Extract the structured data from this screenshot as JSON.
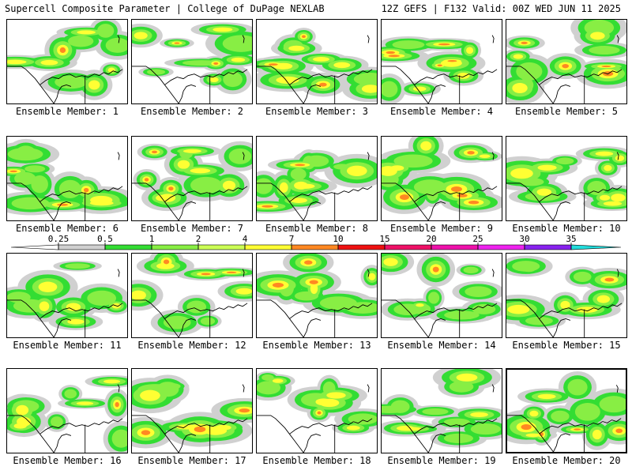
{
  "header": {
    "title_left": "Supercell Composite Parameter | College of DuPage NEXLAB",
    "title_right": "12Z GEFS | F132 Valid: 00Z WED JUN 11 2025"
  },
  "legend": {
    "ticks": [
      "0.25",
      "0.5",
      "1",
      "2",
      "4",
      "7",
      "10",
      "15",
      "20",
      "25",
      "30",
      "35"
    ],
    "colors": [
      "#d0d0d0",
      "#33dd33",
      "#88ee44",
      "#ccff55",
      "#ffff33",
      "#ff8822",
      "#ee1111",
      "#ee1166",
      "#ee11aa",
      "#ee22ee",
      "#8822ee",
      "#aa66dd",
      "#22dddd"
    ]
  },
  "panel_caption_prefix": "Ensemble Member: ",
  "panels": [
    {
      "member": "1"
    },
    {
      "member": "2"
    },
    {
      "member": "3"
    },
    {
      "member": "4"
    },
    {
      "member": "5"
    },
    {
      "member": "6"
    },
    {
      "member": "7"
    },
    {
      "member": "8"
    },
    {
      "member": "9"
    },
    {
      "member": "10"
    },
    {
      "member": "11"
    },
    {
      "member": "12"
    },
    {
      "member": "13"
    },
    {
      "member": "14"
    },
    {
      "member": "15"
    },
    {
      "member": "16"
    },
    {
      "member": "17"
    },
    {
      "member": "18"
    },
    {
      "member": "19"
    },
    {
      "member": "20"
    }
  ]
}
